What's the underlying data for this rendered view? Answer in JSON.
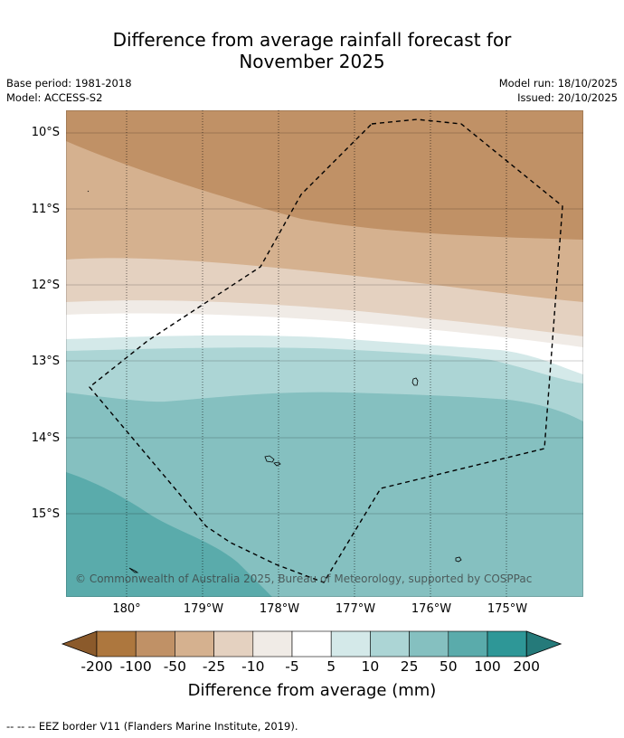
{
  "title_line1": "Difference from average rainfall forecast for",
  "title_line2": "November 2025",
  "meta": {
    "base_period": "Base period: 1981-2018",
    "model": "Model: ACCESS-S2",
    "model_run": "Model run: 18/10/2025",
    "issued": "Issued: 20/10/2025"
  },
  "axes": {
    "lat_labels": [
      "10°S",
      "11°S",
      "12°S",
      "13°S",
      "14°S",
      "15°S"
    ],
    "lon_labels": [
      "180°",
      "179°W",
      "178°W",
      "177°W",
      "176°W",
      "175°W"
    ]
  },
  "copyright": "© Commonwealth of Australia 2025, Bureau of Meteorology, supported by COSPPac",
  "colorbar": {
    "title": "Difference from average (mm)",
    "tick_labels": [
      "-200",
      "-100",
      "-50",
      "-25",
      "-10",
      "-5",
      "5",
      "10",
      "25",
      "50",
      "100",
      "200"
    ],
    "colors": [
      "#8b5a2b",
      "#ad773e",
      "#c09166",
      "#d5b18f",
      "#e4d1c0",
      "#f0ebe6",
      "#ffffff",
      "#d4e9e9",
      "#acd5d5",
      "#85c0c0",
      "#5aabab",
      "#2e9797",
      "#257a7a"
    ]
  },
  "footer": "--  --  -- EEZ border V11 (Flanders Marine Institute, 2019)."
}
